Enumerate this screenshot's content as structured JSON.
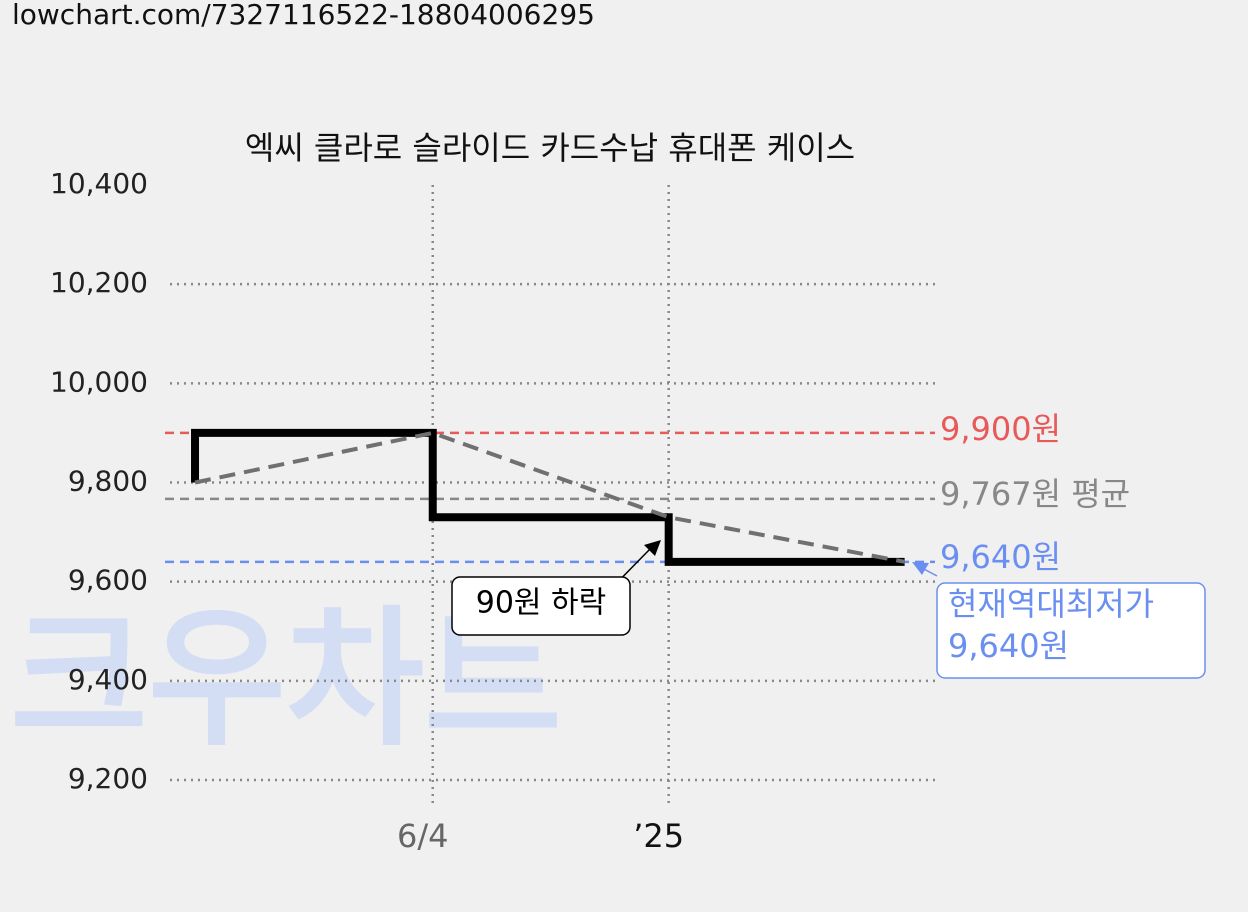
{
  "url": "lowchart.com/7327116522-18804006295",
  "watermark": "크우차트",
  "chart_data": {
    "type": "line",
    "title": "엑씨 클라로 슬라이드 카드수납 휴대폰 케이스",
    "x": [
      28,
      28,
      294,
      294,
      558,
      558,
      822
    ],
    "series": [
      {
        "color": "#000000",
        "values": [
          9800,
          9900,
          9900,
          9730,
          9730,
          9640,
          9640
        ]
      }
    ],
    "trend": {
      "color": "#707070",
      "x": [
        28,
        294,
        558,
        822
      ],
      "values": [
        9800,
        9900,
        9730,
        9640
      ]
    },
    "xlim": [
      0,
      856
    ],
    "xticks": [
      {
        "value": 294,
        "label": "6/4"
      },
      {
        "value": 558,
        "label": "’25"
      }
    ],
    "ylim": [
      9200,
      10400
    ],
    "yticks": [
      {
        "value": 9200,
        "label": "9,200"
      },
      {
        "value": 9400,
        "label": "9,400"
      },
      {
        "value": 9600,
        "label": "9,600"
      },
      {
        "value": 9800,
        "label": "9,800"
      },
      {
        "value": 10000,
        "label": "10,000"
      },
      {
        "value": 10200,
        "label": "10,200"
      },
      {
        "value": 10400,
        "label": "10,400"
      }
    ],
    "grid": true,
    "reference_lines": [
      {
        "value": 9900,
        "label": "9,900원",
        "color": "#e85a5a"
      },
      {
        "value": 9767,
        "label": "9,767원 평균",
        "color": "#888888"
      },
      {
        "value": 9640,
        "label": "9,640원",
        "color": "#6a8ff0"
      }
    ],
    "annotations": [
      {
        "text": "90원 하락",
        "color": "#000000"
      },
      {
        "lines": [
          "현재역대최저가",
          "9,640원"
        ],
        "color": "#6a8ff0"
      }
    ]
  }
}
